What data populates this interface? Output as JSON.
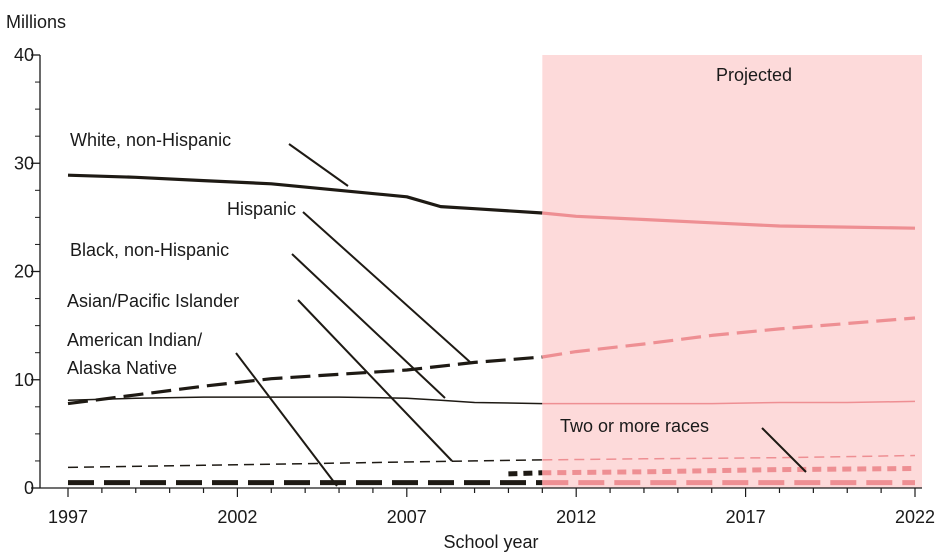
{
  "chart_data": {
    "type": "line",
    "ylabel": "Millions",
    "xlabel": "School year",
    "ylim": [
      0,
      40
    ],
    "xlim": [
      1997,
      2022
    ],
    "yticks": [
      0,
      10,
      20,
      30,
      40
    ],
    "xticks": [
      1997,
      2002,
      2007,
      2012,
      2017,
      2022
    ],
    "projection_start": 2011,
    "projected_label": "Projected",
    "colors": {
      "actual": "#1e1a14",
      "projected": "#ee8f93",
      "projected_band": "#fddada"
    },
    "series": [
      {
        "name": "White, non-Hispanic",
        "style": "solid",
        "width": 3.2,
        "x": [
          1997,
          1999,
          2001,
          2003,
          2005,
          2007,
          2008,
          2009,
          2011,
          2012,
          2014,
          2016,
          2018,
          2020,
          2022
        ],
        "values": [
          28.9,
          28.7,
          28.4,
          28.1,
          27.5,
          26.9,
          26.0,
          25.8,
          25.4,
          25.1,
          24.8,
          24.5,
          24.2,
          24.1,
          24.0
        ]
      },
      {
        "name": "Hispanic",
        "style": "long-dash",
        "width": 3.2,
        "x": [
          1997,
          1999,
          2001,
          2003,
          2005,
          2007,
          2009,
          2011,
          2012,
          2014,
          2016,
          2018,
          2020,
          2022
        ],
        "values": [
          7.8,
          8.6,
          9.4,
          10.1,
          10.5,
          10.9,
          11.6,
          12.1,
          12.6,
          13.3,
          14.1,
          14.7,
          15.2,
          15.7
        ]
      },
      {
        "name": "Black, non-Hispanic",
        "style": "solid",
        "width": 1.5,
        "x": [
          1997,
          1999,
          2001,
          2003,
          2005,
          2007,
          2008,
          2009,
          2011,
          2012,
          2014,
          2016,
          2018,
          2020,
          2022
        ],
        "values": [
          8.1,
          8.3,
          8.4,
          8.4,
          8.4,
          8.3,
          8.1,
          7.9,
          7.8,
          7.8,
          7.8,
          7.8,
          7.9,
          7.9,
          8.0
        ]
      },
      {
        "name": "Asian/Pacific Islander",
        "style": "dash",
        "width": 1.5,
        "x": [
          1997,
          2001,
          2005,
          2009,
          2011,
          2014,
          2018,
          2022
        ],
        "values": [
          1.9,
          2.1,
          2.3,
          2.5,
          2.6,
          2.7,
          2.8,
          3.0
        ]
      },
      {
        "name": "American Indian/ Alaska Native",
        "style": "heavy-dash",
        "width": 5,
        "x": [
          1997,
          2002,
          2007,
          2011,
          2016,
          2022
        ],
        "values": [
          0.5,
          0.5,
          0.5,
          0.5,
          0.5,
          0.5
        ]
      },
      {
        "name": "Two or more races",
        "style": "dotted",
        "width": 5,
        "x": [
          2010,
          2011,
          2014,
          2018,
          2022
        ],
        "values": [
          1.3,
          1.4,
          1.5,
          1.7,
          1.8
        ]
      }
    ],
    "annotations": [
      {
        "lines": [
          "Projected"
        ]
      },
      {
        "lines": [
          "White, non-Hispanic"
        ]
      },
      {
        "lines": [
          "Hispanic"
        ]
      },
      {
        "lines": [
          "Black, non-Hispanic"
        ]
      },
      {
        "lines": [
          "Asian/Pacific Islander"
        ]
      },
      {
        "lines": [
          "American Indian/",
          "Alaska Native"
        ]
      },
      {
        "lines": [
          "Two or more races"
        ]
      }
    ]
  }
}
